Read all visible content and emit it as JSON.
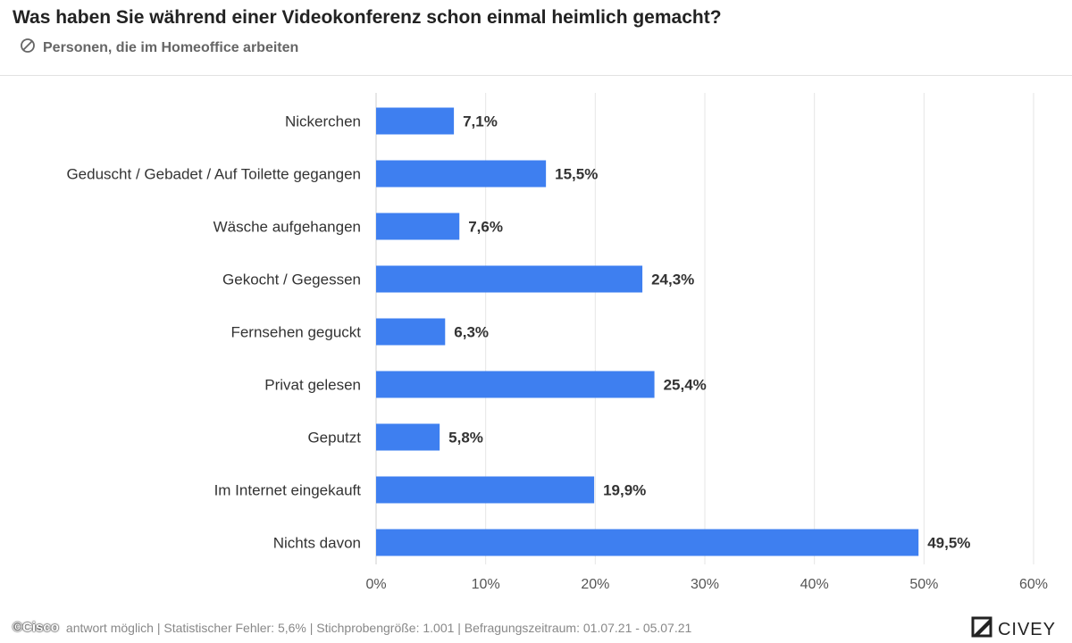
{
  "header": {
    "title": "Was haben Sie während einer Videokonferenz schon einmal heimlich gemacht?",
    "subtitle": "Personen, die im Homeoffice arbeiten",
    "subtitle_icon": "no-circle-icon"
  },
  "chart_data": {
    "type": "bar",
    "orientation": "horizontal",
    "categories": [
      "Nickerchen",
      "Geduscht / Gebadet / Auf Toilette gegangen",
      "Wäsche aufgehangen",
      "Gekocht / Gegessen",
      "Fernsehen geguckt",
      "Privat gelesen",
      "Geputzt",
      "Im Internet eingekauft",
      "Nichts davon"
    ],
    "values": [
      7.1,
      15.5,
      7.6,
      24.3,
      6.3,
      25.4,
      5.8,
      19.9,
      49.5
    ],
    "value_labels": [
      "7,1%",
      "15,5%",
      "7,6%",
      "24,3%",
      "6,3%",
      "25,4%",
      "5,8%",
      "19,9%",
      "49,5%"
    ],
    "xlim": [
      0,
      60
    ],
    "xticks": [
      0,
      10,
      20,
      30,
      40,
      50,
      60
    ],
    "xtick_labels": [
      "0%",
      "10%",
      "20%",
      "30%",
      "40%",
      "50%",
      "60%"
    ],
    "grid": true,
    "bar_color": "#3e7ff0"
  },
  "footer": {
    "watermark": "©Cisco",
    "note": "antwort möglich | Statistischer Fehler: 5,6% | Stichprobengröße: 1.001 | Befragungszeitraum: 01.07.21 - 05.07.21",
    "brand": "CIVEY",
    "brand_icon": "civey-logo-icon"
  }
}
